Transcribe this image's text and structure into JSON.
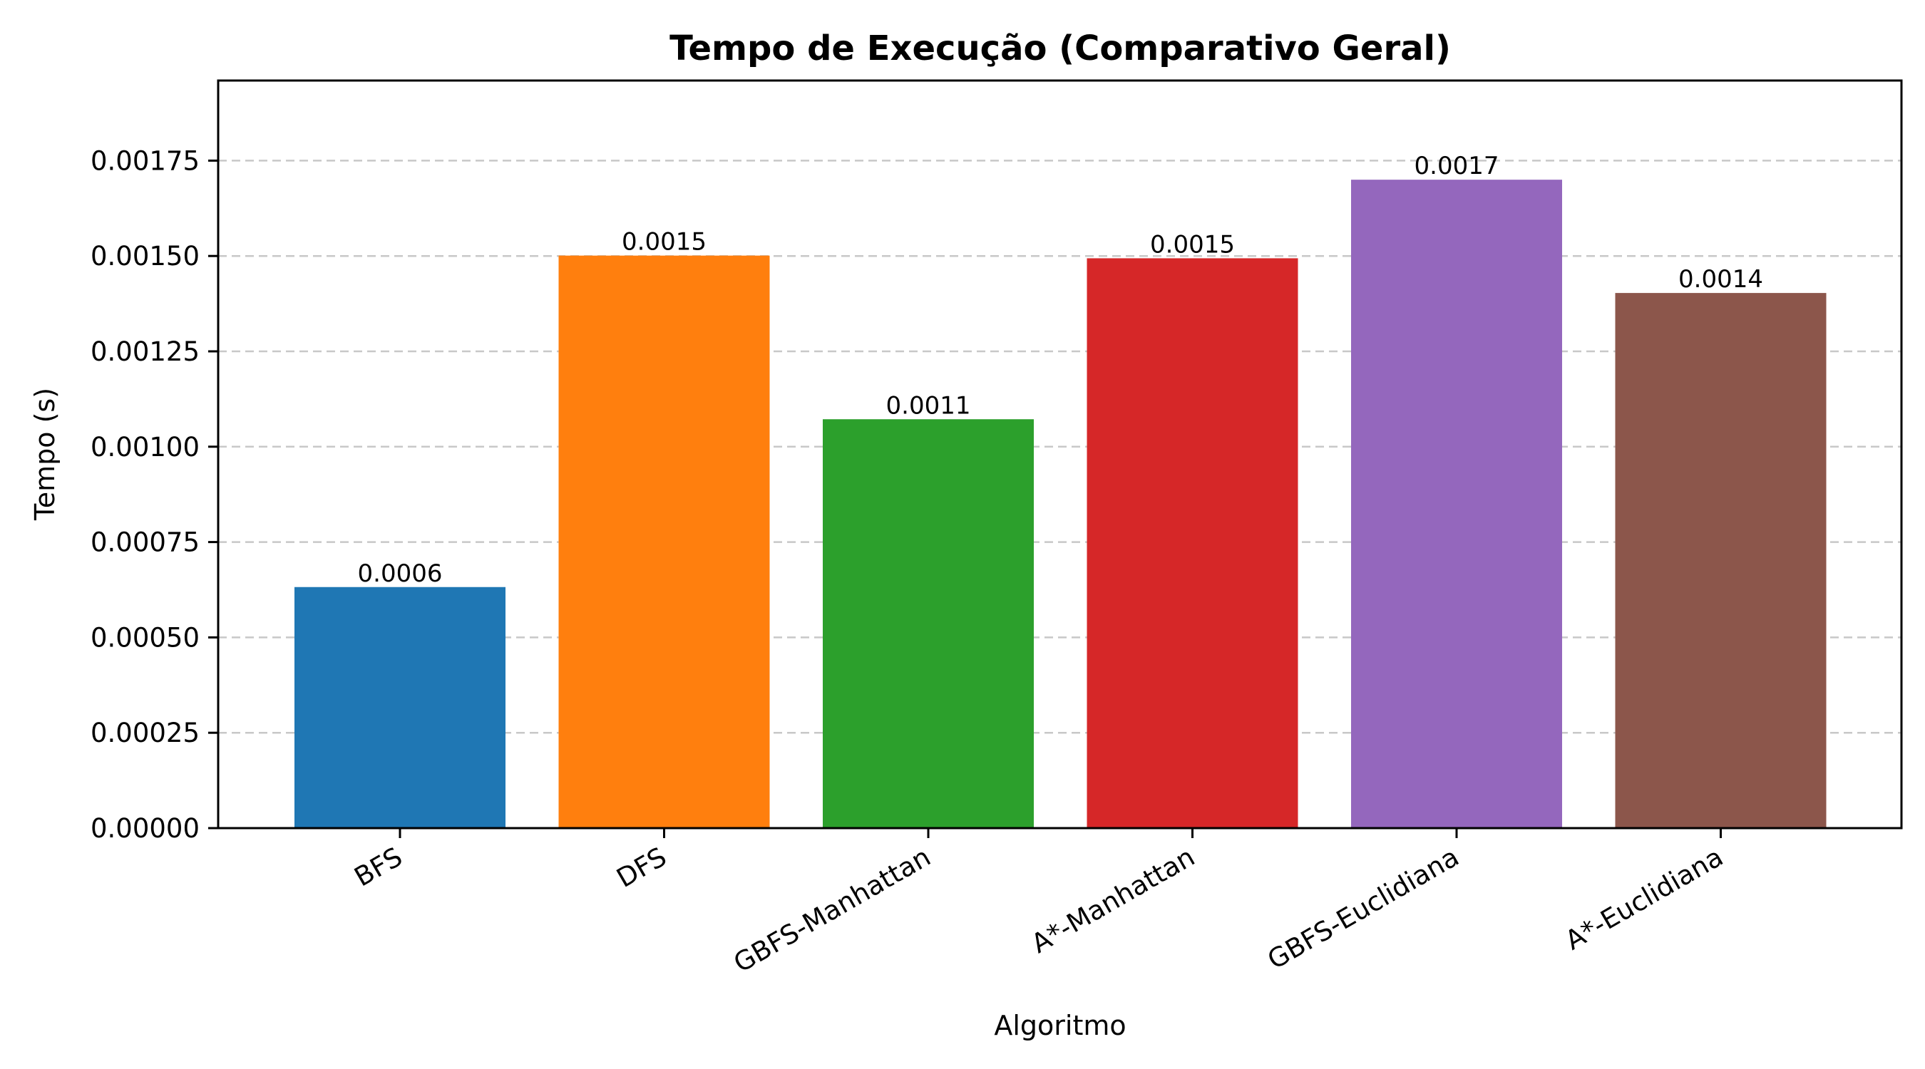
{
  "chart_data": {
    "type": "bar",
    "title": "Tempo de Execução (Comparativo Geral)",
    "xlabel": "Algoritmo",
    "ylabel": "Tempo (s)",
    "categories": [
      "BFS",
      "DFS",
      "GBFS-Manhattan",
      "A*-Manhattan",
      "GBFS-Euclidiana",
      "A*-Euclidiana"
    ],
    "values": [
      0.000632,
      0.001501,
      0.001072,
      0.001494,
      0.0017,
      0.001403
    ],
    "data_labels": [
      "0.0006",
      "0.0015",
      "0.0011",
      "0.0015",
      "0.0017",
      "0.0014"
    ],
    "colors": [
      "#1f77b4",
      "#ff7f0e",
      "#2ca02c",
      "#d62728",
      "#9467bd",
      "#8c564b"
    ],
    "ylim": [
      0,
      0.00196
    ],
    "yticks": [
      0,
      0.00025,
      0.0005,
      0.00075,
      0.001,
      0.00125,
      0.0015,
      0.00175
    ],
    "ytick_labels": [
      "0.00000",
      "0.00025",
      "0.00050",
      "0.00075",
      "0.00100",
      "0.00125",
      "0.00150",
      "0.00175"
    ],
    "grid": "y-dashed",
    "legend": "none"
  }
}
